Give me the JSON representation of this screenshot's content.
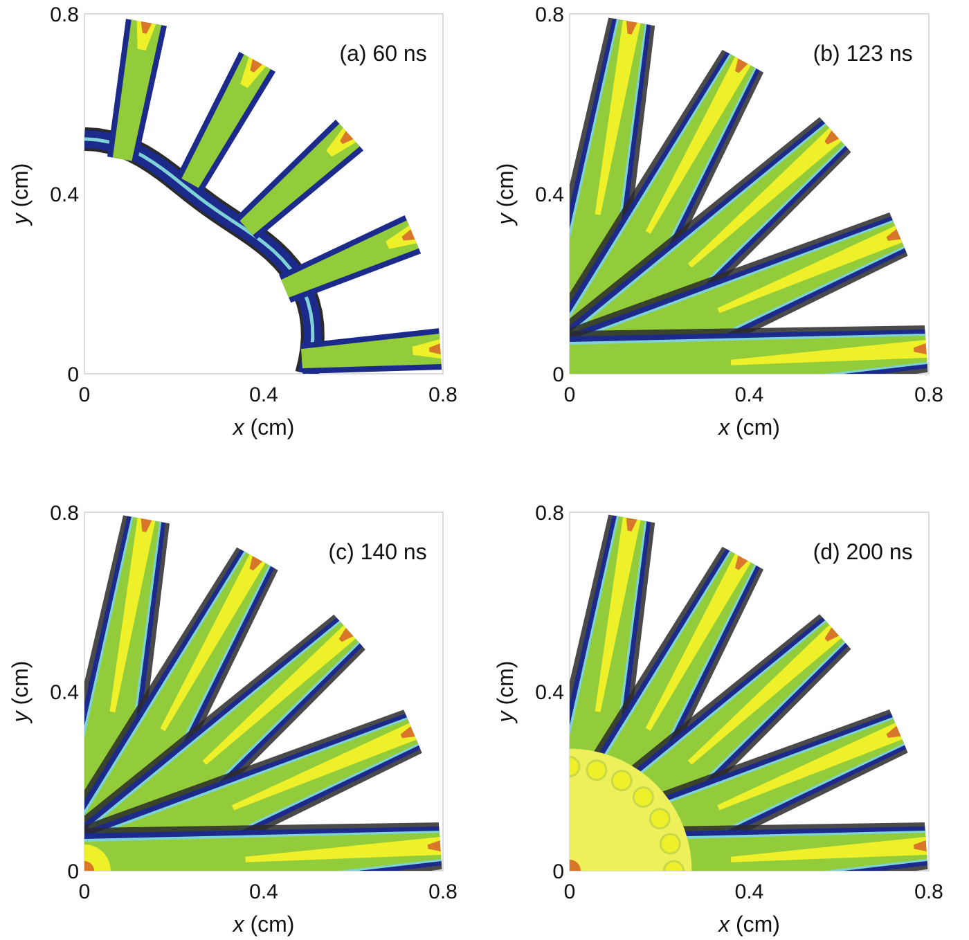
{
  "colors": {
    "black": "#2a2a2a",
    "dark_blue": "#1c2a8c",
    "cyan": "#7fd3d6",
    "green": "#93cc3a",
    "yellow": "#eef02a",
    "orange": "#d8772a",
    "frame": "#d0d0d0"
  },
  "chart_data": [
    {
      "type": "heatmap",
      "annotation": "(a) 60 ns",
      "xlabel_var": "x",
      "xlabel_unit": " (cm)",
      "ylabel_var": "y",
      "ylabel_unit": " (cm)",
      "xlim": [
        0,
        0.8
      ],
      "ylim": [
        0,
        0.8
      ],
      "xticks": [
        "0",
        "0.4",
        "0.8"
      ],
      "yticks": [
        "0",
        "0.4",
        "0.8"
      ],
      "stage": "a",
      "streamer_angles_deg": [
        80,
        61,
        42,
        23,
        4
      ]
    },
    {
      "type": "heatmap",
      "annotation": "(b) 123 ns",
      "xlabel_var": "x",
      "xlabel_unit": " (cm)",
      "ylabel_var": "y",
      "ylabel_unit": " (cm)",
      "xlim": [
        0,
        0.8
      ],
      "ylim": [
        0,
        0.8
      ],
      "xticks": [
        "0",
        "0.4",
        "0.8"
      ],
      "yticks": [
        "0",
        "0.4",
        "0.8"
      ],
      "stage": "b",
      "streamer_angles_deg": [
        80,
        61,
        42,
        23,
        4
      ]
    },
    {
      "type": "heatmap",
      "annotation": "(c) 140 ns",
      "xlabel_var": "x",
      "xlabel_unit": " (cm)",
      "ylabel_var": "y",
      "ylabel_unit": " (cm)",
      "xlim": [
        0,
        0.8
      ],
      "ylim": [
        0,
        0.8
      ],
      "xticks": [
        "0",
        "0.4",
        "0.8"
      ],
      "yticks": [
        "0",
        "0.4",
        "0.8"
      ],
      "stage": "c",
      "streamer_angles_deg": [
        80,
        61,
        42,
        23,
        4
      ]
    },
    {
      "type": "heatmap",
      "annotation": "(d) 200 ns",
      "xlabel_var": "x",
      "xlabel_unit": " (cm)",
      "ylabel_var": "y",
      "ylabel_unit": " (cm)",
      "xlim": [
        0,
        0.8
      ],
      "ylim": [
        0,
        0.8
      ],
      "xticks": [
        "0",
        "0.4",
        "0.8"
      ],
      "yticks": [
        "0",
        "0.4",
        "0.8"
      ],
      "stage": "d",
      "streamer_angles_deg": [
        80,
        61,
        42,
        23,
        4
      ]
    }
  ]
}
